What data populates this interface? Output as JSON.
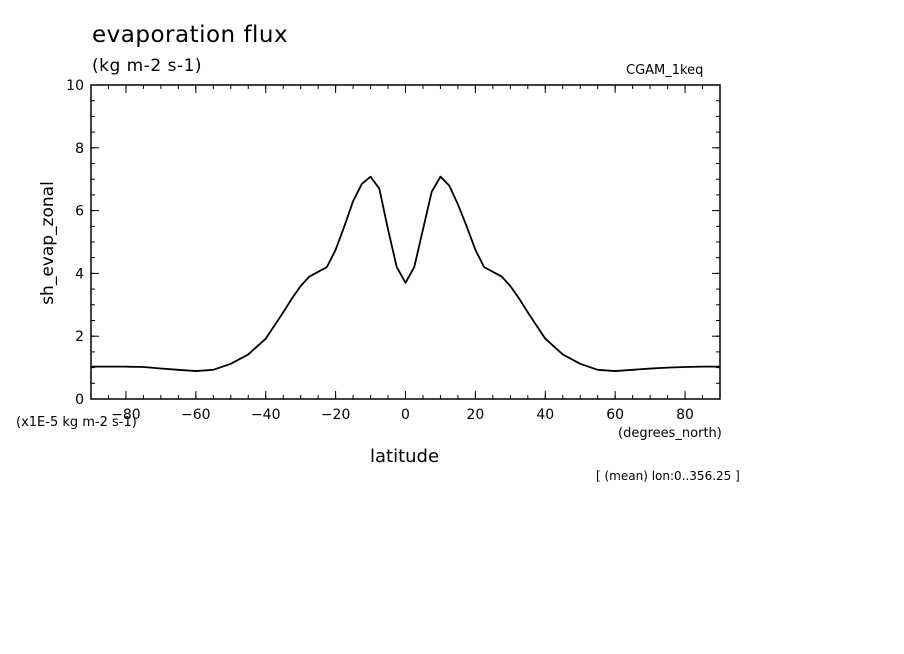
{
  "chart_data": {
    "type": "line",
    "title": "evaporation flux",
    "subtitle": "(kg m-2 s-1)",
    "dataset_label": "CGAM_1keq",
    "ylabel": "sh_evap_zonal",
    "y_units_label": "(x1E-5 kg m-2 s-1)",
    "xlabel": "latitude",
    "x_units_label": "(degrees_north)",
    "footnote": "[ (mean) lon:0..356.25 ]",
    "xlim": [
      -90,
      90
    ],
    "ylim": [
      0,
      10
    ],
    "x_ticks": [
      -80,
      -60,
      -40,
      -20,
      0,
      20,
      40,
      60,
      80
    ],
    "y_ticks": [
      0,
      2,
      4,
      6,
      8,
      10
    ],
    "grid": false,
    "x": [
      -90,
      -85,
      -80,
      -75,
      -70,
      -65,
      -60,
      -55,
      -50,
      -45,
      -40,
      -35,
      -32.5,
      -30,
      -27.5,
      -25,
      -22.5,
      -20,
      -17.5,
      -15,
      -12.5,
      -10,
      -7.5,
      -5,
      -2.5,
      0,
      2.5,
      5,
      7.5,
      10,
      12.5,
      15,
      17.5,
      20,
      22.5,
      25,
      27.5,
      30,
      32.5,
      35,
      40,
      45,
      50,
      55,
      60,
      65,
      70,
      75,
      80,
      85,
      90
    ],
    "values": [
      1.03,
      1.03,
      1.03,
      1.02,
      0.97,
      0.93,
      0.89,
      0.93,
      1.12,
      1.42,
      1.92,
      2.76,
      3.2,
      3.6,
      3.9,
      4.05,
      4.2,
      4.75,
      5.5,
      6.3,
      6.85,
      7.08,
      6.7,
      5.4,
      4.2,
      3.7,
      4.2,
      5.4,
      6.6,
      7.08,
      6.8,
      6.2,
      5.5,
      4.75,
      4.2,
      4.05,
      3.9,
      3.6,
      3.2,
      2.76,
      1.92,
      1.42,
      1.12,
      0.93,
      0.89,
      0.93,
      0.97,
      1.0,
      1.02,
      1.03,
      1.03
    ]
  }
}
